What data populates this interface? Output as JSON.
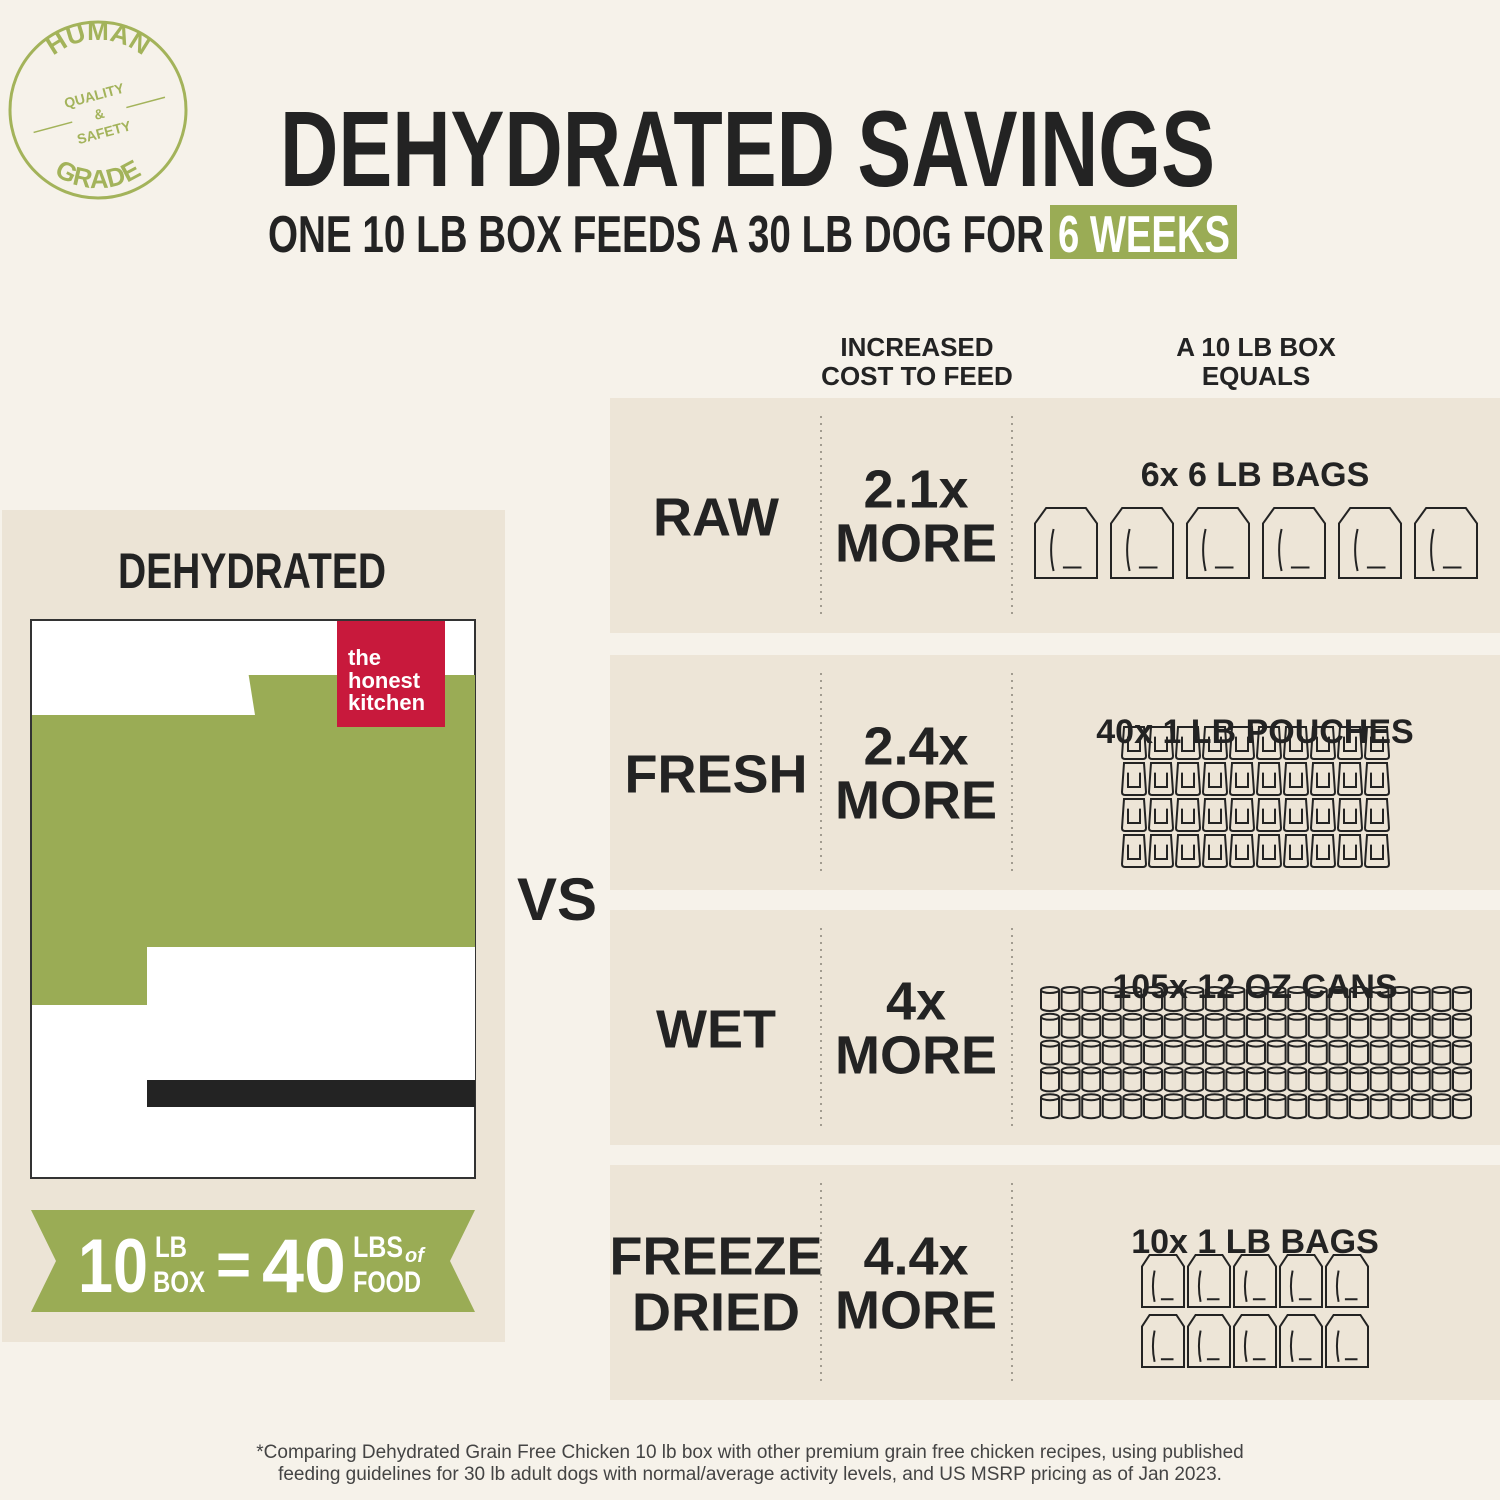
{
  "badge": {
    "top": "HUMAN",
    "middle": [
      "QUALITY",
      "&",
      "SAFETY"
    ],
    "bottom": "GRADE"
  },
  "header": {
    "title": "DEHYDRATED SAVINGS",
    "subtitle": "ONE 10 LB BOX FEEDS A 30 LB DOG FOR",
    "highlight": "6 WEEKS"
  },
  "left": {
    "title": "DEHYDRATED",
    "brand": [
      "the",
      "honest",
      "kitchen"
    ],
    "banner": {
      "amount": "10",
      "unit_top": "LB",
      "unit_bottom": "BOX",
      "equals": "=",
      "result": "40",
      "result_top": "LBS",
      "result_of": "of",
      "result_bottom": "FOOD"
    }
  },
  "vs": "VS",
  "table": {
    "headers": [
      [
        "INCREASED",
        "COST TO FEED"
      ],
      [
        "A 10 LB BOX",
        "EQUALS"
      ]
    ],
    "rows": [
      {
        "type": [
          "RAW"
        ],
        "cost": "2.1x",
        "more": "MORE",
        "equals": "6x 6 LB BAGS"
      },
      {
        "type": [
          "FRESH"
        ],
        "cost": "2.4x",
        "more": "MORE",
        "equals": "40x 1 LB POUCHES"
      },
      {
        "type": [
          "WET"
        ],
        "cost": "4x",
        "more": "MORE",
        "equals": "105x 12 OZ CANS"
      },
      {
        "type": [
          "FREEZE",
          "DRIED"
        ],
        "cost": "4.4x",
        "more": "MORE",
        "equals": "10x 1 LB BAGS"
      }
    ]
  },
  "footnote": [
    "*Comparing Dehydrated Grain Free Chicken 10 lb box with other premium grain free chicken recipes, using published",
    "feeding guidelines for 30 lb adult dogs with normal/average activity levels, and US MSRP pricing as of Jan 2023."
  ]
}
